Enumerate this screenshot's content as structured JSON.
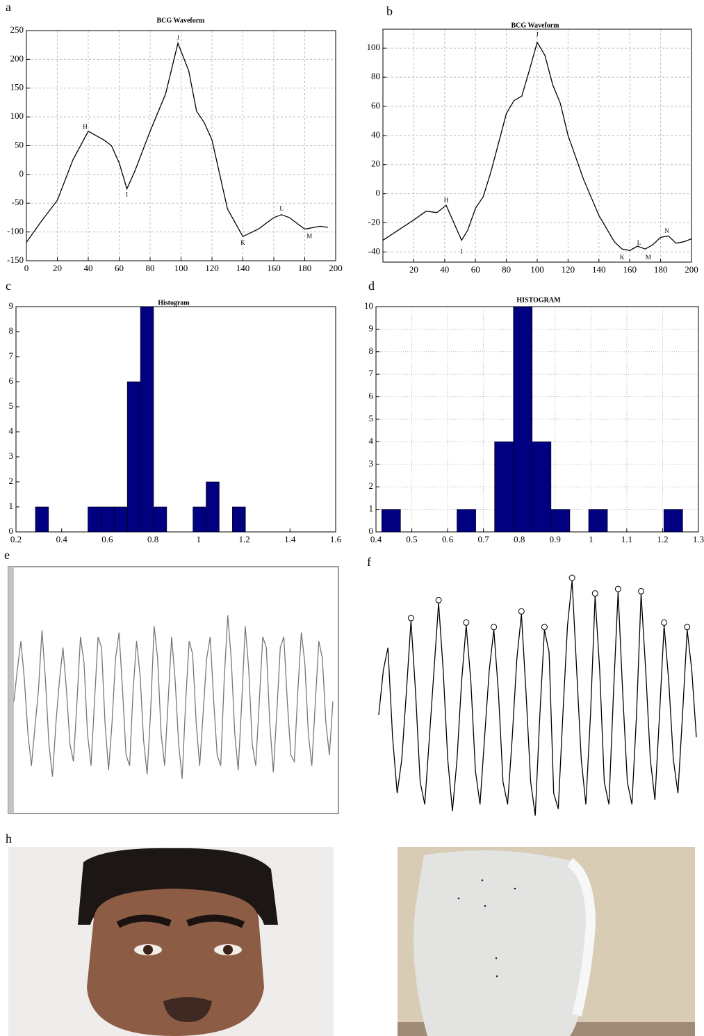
{
  "chart_data": [
    {
      "type": "line",
      "panel": "a",
      "title": "BCG Waveform",
      "color": "#000000",
      "x": [
        0,
        10,
        20,
        30,
        40,
        50,
        55,
        60,
        65,
        70,
        80,
        90,
        98,
        105,
        110,
        115,
        120,
        130,
        140,
        150,
        160,
        165,
        170,
        180,
        190,
        195
      ],
      "values": [
        -118,
        -80,
        -45,
        25,
        75,
        60,
        50,
        20,
        -25,
        5,
        75,
        140,
        228,
        180,
        110,
        90,
        60,
        -60,
        -108,
        -95,
        -75,
        -70,
        -75,
        -95,
        -90,
        -92
      ],
      "xlim": [
        0,
        200
      ],
      "xticks": [
        0,
        20,
        40,
        60,
        80,
        100,
        120,
        140,
        160,
        180,
        200
      ],
      "ylim": [
        -150,
        250
      ],
      "yticks": [
        -150,
        -100,
        -50,
        0,
        50,
        100,
        150,
        200,
        250
      ],
      "grid": "dashed",
      "annotations": [
        {
          "text": "H",
          "x": 38,
          "y": 82
        },
        {
          "text": "I",
          "x": 65,
          "y": -36
        },
        {
          "text": "J",
          "x": 98,
          "y": 236
        },
        {
          "text": "K",
          "x": 140,
          "y": -120
        },
        {
          "text": "L",
          "x": 165,
          "y": -60
        },
        {
          "text": "M",
          "x": 183,
          "y": -108
        }
      ]
    },
    {
      "type": "line",
      "panel": "b",
      "title": "BCG Waveform",
      "color": "#000000",
      "x": [
        0,
        10,
        20,
        28,
        35,
        41,
        46,
        51,
        55,
        60,
        65,
        70,
        75,
        80,
        85,
        90,
        95,
        100,
        105,
        110,
        115,
        120,
        130,
        140,
        150,
        155,
        160,
        165,
        170,
        175,
        180,
        185,
        190,
        195,
        200
      ],
      "values": [
        -32,
        -25,
        -18,
        -12,
        -13,
        -8,
        -20,
        -32,
        -25,
        -10,
        -2,
        15,
        35,
        55,
        64,
        67,
        85,
        104,
        95,
        75,
        62,
        40,
        10,
        -15,
        -33,
        -38,
        -39,
        -36,
        -38,
        -35,
        -30,
        -29,
        -34,
        -33,
        -31
      ],
      "xlim": [
        0,
        200
      ],
      "xticks": [
        20,
        40,
        60,
        80,
        100,
        120,
        140,
        160,
        180,
        200
      ],
      "ylim": [
        -47,
        113
      ],
      "yticks": [
        -40,
        -20,
        0,
        20,
        40,
        60,
        80,
        100
      ],
      "grid": "dashed",
      "annotations": [
        {
          "text": "H",
          "x": 41,
          "y": -5
        },
        {
          "text": "I",
          "x": 51,
          "y": -40
        },
        {
          "text": "J",
          "x": 100,
          "y": 109
        },
        {
          "text": "K",
          "x": 155,
          "y": -44
        },
        {
          "text": "L",
          "x": 166,
          "y": -34
        },
        {
          "text": "M",
          "x": 172,
          "y": -44
        },
        {
          "text": "N",
          "x": 184,
          "y": -26
        }
      ]
    },
    {
      "type": "histogram",
      "panel": "c",
      "title": "Histogram",
      "color": "#000080",
      "bins": [
        0.285,
        0.3425,
        0.4,
        0.4575,
        0.515,
        0.5725,
        0.63,
        0.6875,
        0.745,
        0.8025,
        0.86,
        0.9175,
        0.975,
        1.0325,
        1.09,
        1.1475,
        1.205
      ],
      "values": [
        1,
        0,
        0,
        0,
        1,
        1,
        1,
        6,
        9,
        1,
        0,
        0,
        1,
        2,
        0,
        1
      ],
      "xlim": [
        0.2,
        1.6
      ],
      "xticks": [
        0.2,
        0.4,
        0.6,
        0.8,
        1,
        1.2,
        1.4,
        1.6
      ],
      "ylim": [
        0,
        9
      ],
      "yticks": [
        0,
        1,
        2,
        3,
        4,
        5,
        6,
        7,
        8,
        9
      ],
      "grid": "none"
    },
    {
      "type": "histogram",
      "panel": "d",
      "title": "HISTOGRAM",
      "color": "#000080",
      "bins": [
        0.416,
        0.4685,
        0.521,
        0.5735,
        0.626,
        0.6785,
        0.731,
        0.7835,
        0.836,
        0.8885,
        0.941,
        0.9935,
        1.046,
        1.0985,
        1.151,
        1.2035,
        1.256
      ],
      "values": [
        1,
        0,
        0,
        0,
        1,
        0,
        4,
        10,
        4,
        1,
        0,
        1,
        0,
        0,
        0,
        1
      ],
      "xlim": [
        0.4,
        1.3
      ],
      "xticks": [
        0.4,
        0.5,
        0.6,
        0.7,
        0.8,
        0.9,
        1,
        1.1,
        1.2,
        1.3
      ],
      "ylim": [
        0,
        10
      ],
      "yticks": [
        0,
        1,
        2,
        3,
        4,
        5,
        6,
        7,
        8,
        9,
        10
      ],
      "grid": "dotted"
    },
    {
      "type": "line",
      "panel": "e",
      "color": "#777777",
      "frame": true,
      "values": [
        0,
        1.5,
        2.8,
        1,
        -1.5,
        -3,
        -1.2,
        0.5,
        3.3,
        1,
        -2,
        -3.5,
        -1,
        1,
        2.5,
        0.5,
        -2,
        -2.8,
        0,
        3,
        1.8,
        -1.5,
        -3,
        0,
        3,
        2.5,
        -1,
        -3.2,
        -1,
        2,
        3.2,
        0.5,
        -2.5,
        -3,
        0.5,
        2.8,
        1.2,
        -1.8,
        -3.4,
        -0.5,
        3.5,
        2,
        -1.5,
        -3,
        0,
        3,
        1,
        -2,
        -3.6,
        0,
        2.8,
        2.2,
        -1,
        -3,
        -0.5,
        2,
        3,
        0,
        -2.5,
        -3,
        1,
        4,
        2,
        -1.5,
        -3.2,
        0,
        3.5,
        1.5,
        -2,
        -3,
        0,
        3,
        2.5,
        -1,
        -3.3,
        -0.5,
        2.5,
        3,
        0,
        -2.5,
        -2.8,
        0.5,
        3.2,
        1.8,
        -1.5,
        -3,
        0,
        2.8,
        2,
        -1,
        -2.5,
        0
      ]
    },
    {
      "type": "line",
      "panel": "f",
      "color": "#000000",
      "frame": false,
      "values": [
        0,
        2,
        3,
        -1,
        -3.5,
        -2,
        1,
        4.2,
        1,
        -3,
        -4,
        -1,
        2,
        5,
        2,
        -2,
        -4.3,
        -2,
        1.5,
        4,
        1.5,
        -2.5,
        -4,
        -1,
        2,
        3.8,
        1,
        -3,
        -4,
        -1,
        2.5,
        4.5,
        1,
        -3,
        -4.5,
        0,
        3.8,
        2.8,
        -3.5,
        -4.2,
        0,
        4,
        6,
        2,
        -2,
        -4,
        0,
        5.3,
        2,
        -3,
        -4,
        1,
        5.5,
        1,
        -3,
        -4,
        0,
        5.4,
        2,
        -2,
        -3.8,
        0,
        4,
        1.5,
        -2,
        -3.5,
        0,
        3.8,
        2,
        -1
      ],
      "peaks": [
        null,
        null,
        null,
        null,
        null,
        null,
        null,
        4.2,
        null,
        null,
        null,
        null,
        null,
        5,
        null,
        null,
        null,
        null,
        null,
        4,
        null,
        null,
        null,
        null,
        null,
        3.8,
        null,
        null,
        null,
        null,
        null,
        4.5,
        null,
        null,
        null,
        null,
        3.8,
        null,
        null,
        null,
        null,
        null,
        6,
        null,
        null,
        null,
        null,
        5.3,
        null,
        null,
        null,
        null,
        5.5,
        null,
        null,
        null,
        null,
        5.4,
        null,
        null,
        null,
        null,
        4,
        null,
        null,
        null,
        null,
        3.8,
        null,
        null
      ]
    }
  ],
  "photos": {
    "label": "h"
  }
}
